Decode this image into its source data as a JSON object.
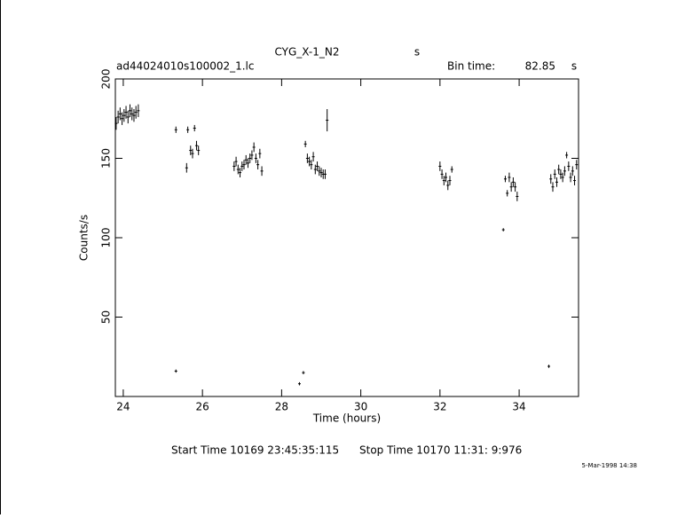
{
  "chart_data": {
    "type": "scatter",
    "title": "CYG_X-1_N2",
    "title_unit": "s",
    "file_name": "ad44024010s100002_1.lc",
    "bin_time_label": "Bin time:",
    "bin_time": "82.85",
    "bin_time_unit": "s",
    "x_label": "Time (hours)",
    "y_label": "Counts/s",
    "start_time": "Start Time 10169 23:45:35:115",
    "stop_time": "Stop Time 10170 11:31: 9:976",
    "date_stamp": "5-Mar-1998 14:38",
    "xlim": [
      23.8,
      35.5
    ],
    "ylim": [
      0,
      200
    ],
    "xticks": [
      24,
      26,
      28,
      30,
      32,
      34
    ],
    "yticks": [
      50,
      100,
      150,
      200
    ],
    "color": "#000000",
    "series": [
      {
        "x": [
          23.82,
          23.87,
          23.92,
          23.97,
          24.02,
          24.07,
          24.12,
          24.17,
          24.22,
          24.27,
          24.32,
          24.38,
          25.33,
          25.33,
          25.6,
          25.63,
          25.7,
          25.75,
          25.8,
          25.85,
          25.9,
          26.8,
          26.85,
          26.9,
          26.95,
          27.0,
          27.05,
          27.1,
          27.15,
          27.2,
          27.25,
          27.3,
          27.35,
          27.4,
          27.45,
          27.5,
          28.45,
          28.55,
          28.6,
          28.65,
          28.7,
          28.75,
          28.8,
          28.85,
          28.9,
          28.95,
          29.0,
          29.05,
          29.1,
          29.15,
          32.0,
          32.05,
          32.1,
          32.15,
          32.2,
          32.25,
          32.3,
          33.6,
          33.65,
          33.7,
          33.75,
          33.8,
          33.85,
          33.9,
          33.95,
          34.75,
          34.8,
          34.85,
          34.9,
          34.95,
          35.0,
          35.05,
          35.1,
          35.15,
          35.2,
          35.25,
          35.3,
          35.35,
          35.4,
          35.45
        ],
        "y": [
          172,
          176,
          178,
          175,
          177,
          179,
          176,
          180,
          178,
          177,
          179,
          180,
          168,
          16,
          144,
          168,
          155,
          153,
          169,
          158,
          155,
          145,
          148,
          143,
          141,
          145,
          146,
          149,
          147,
          150,
          152,
          157,
          150,
          146,
          153,
          142,
          8,
          15,
          159,
          150,
          148,
          146,
          151,
          143,
          145,
          142,
          141,
          140,
          140,
          174,
          145,
          140,
          136,
          138,
          133,
          136,
          143,
          105,
          137,
          128,
          138,
          132,
          135,
          132,
          126,
          19,
          137,
          132,
          140,
          135,
          143,
          140,
          138,
          142,
          152,
          145,
          138,
          142,
          136,
          146
        ],
        "err": [
          4,
          4,
          4,
          4,
          4,
          4,
          4,
          4,
          4,
          4,
          4,
          4,
          2,
          1,
          3,
          2,
          3,
          3,
          2,
          3,
          3,
          3,
          3,
          3,
          3,
          3,
          3,
          3,
          3,
          3,
          3,
          3,
          3,
          3,
          3,
          3,
          1,
          1,
          2,
          3,
          3,
          3,
          3,
          3,
          3,
          3,
          3,
          3,
          3,
          7,
          3,
          3,
          3,
          3,
          3,
          3,
          2,
          1,
          2,
          2,
          3,
          3,
          3,
          3,
          3,
          1,
          3,
          3,
          3,
          3,
          3,
          3,
          3,
          3,
          2,
          3,
          3,
          3,
          3,
          3
        ]
      }
    ]
  }
}
